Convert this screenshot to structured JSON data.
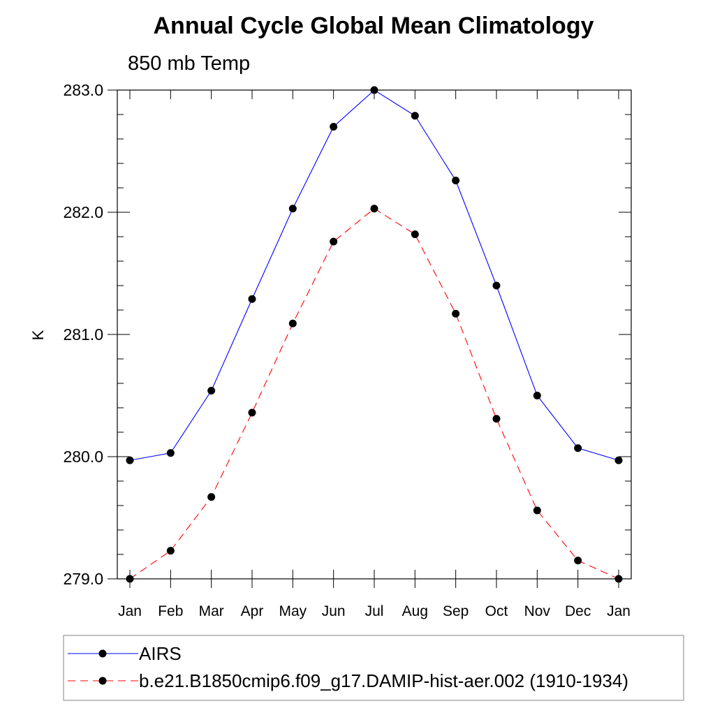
{
  "chart_data": {
    "type": "line",
    "title": "Annual Cycle Global Mean Climatology",
    "subtitle": "850 mb Temp",
    "xlabel": "",
    "ylabel": "K",
    "categories": [
      "Jan",
      "Feb",
      "Mar",
      "Apr",
      "May",
      "Jun",
      "Jul",
      "Aug",
      "Sep",
      "Oct",
      "Nov",
      "Dec",
      "Jan"
    ],
    "ylim": [
      279.0,
      283.0
    ],
    "yticks": [
      "279.0",
      "280.0",
      "281.0",
      "282.0",
      "283.0"
    ],
    "y_minor_step": 0.2,
    "grid": false,
    "legend_position": "bottom",
    "series": [
      {
        "name": "AIRS",
        "color": "#0000ff",
        "line_style": "solid",
        "marker": "filled-circle",
        "values": [
          279.97,
          280.03,
          280.54,
          281.29,
          282.03,
          282.7,
          283.0,
          282.79,
          282.26,
          281.4,
          280.5,
          280.07,
          279.97
        ]
      },
      {
        "name": "b.e21.B1850cmip6.f09_g17.DAMIP-hist-aer.002 (1910-1934)",
        "color": "#ff0000",
        "line_style": "dashed",
        "marker": "filled-circle",
        "values": [
          279.0,
          279.23,
          279.67,
          280.36,
          281.09,
          281.76,
          282.03,
          281.82,
          281.17,
          280.31,
          279.56,
          279.15,
          279.0
        ]
      }
    ]
  }
}
